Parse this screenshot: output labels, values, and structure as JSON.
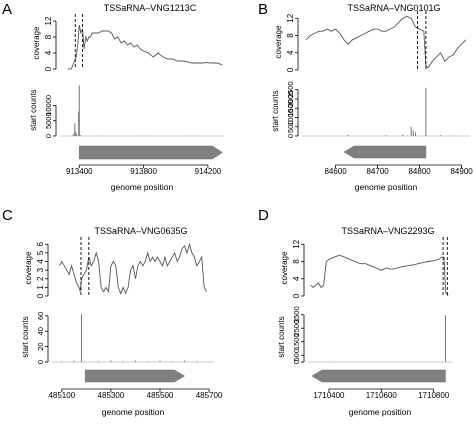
{
  "xlabel": "genome position",
  "chart_data": [
    {
      "panel": "A",
      "title": "TSSaRNA–VNG1213C",
      "type": "line",
      "coverage": {
        "ylabel": "coverage",
        "ylim": [
          0,
          13
        ],
        "yticks": [
          "0",
          "4",
          "8",
          "12"
        ],
        "x": [
          913330,
          913340,
          913350,
          913360,
          913370,
          913380,
          913390,
          913400,
          913410,
          913420,
          913430,
          913440,
          913450,
          913460,
          913470,
          913480,
          913490,
          913500,
          913520,
          913540,
          913560,
          913580,
          913600,
          913620,
          913640,
          913660,
          913680,
          913700,
          913720,
          913740,
          913760,
          913780,
          913800,
          913830,
          913860,
          913890,
          913920,
          913950,
          913980,
          914010,
          914040,
          914070,
          914100,
          914130,
          914160,
          914190,
          914220,
          914250,
          914280,
          914290
        ],
        "y": [
          0,
          0,
          0,
          1,
          2,
          3,
          6,
          11,
          9,
          10,
          5,
          8,
          7,
          8,
          8,
          9,
          9,
          9,
          9,
          9.5,
          9.5,
          9.5,
          9,
          7.5,
          8,
          6.5,
          7,
          6,
          6.5,
          5.5,
          6,
          5,
          4.5,
          4,
          3,
          4,
          3,
          2.5,
          2.5,
          2,
          2,
          1.8,
          1.5,
          1.5,
          1.5,
          1.6,
          1.5,
          1.5,
          1.2,
          1
        ]
      },
      "start_counts": {
        "ylabel": "start counts",
        "ylim": [
          0,
          17000
        ],
        "yticks": [
          "0",
          "5000",
          "10000"
        ],
        "spikes": [
          [
            913362,
            600
          ],
          [
            913372,
            4200
          ],
          [
            913376,
            1500
          ],
          [
            913382,
            800
          ],
          [
            913396,
            8000
          ],
          [
            913400,
            16500
          ],
          [
            913406,
            300
          ],
          [
            913520,
            150
          ],
          [
            913800,
            120
          ],
          [
            914100,
            100
          ]
        ]
      },
      "xticks": [
        913400,
        913800,
        914200
      ],
      "xlim": [
        913280,
        914300
      ],
      "gene": {
        "start": 913400,
        "end": 914290,
        "direction": "right"
      },
      "tss_lines": [
        913375,
        913420
      ]
    },
    {
      "panel": "B",
      "title": "TSSaRNA–VNG0101G",
      "type": "line",
      "coverage": {
        "ylabel": "coverage",
        "ylim": [
          0,
          13
        ],
        "yticks": [
          "0",
          "4",
          "8",
          "12"
        ],
        "x": [
          84530,
          84540,
          84550,
          84560,
          84570,
          84580,
          84590,
          84600,
          84610,
          84620,
          84630,
          84640,
          84650,
          84660,
          84670,
          84680,
          84690,
          84700,
          84710,
          84720,
          84730,
          84740,
          84750,
          84760,
          84770,
          84780,
          84790,
          84800,
          84810,
          84815,
          84820,
          84830,
          84840,
          84850,
          84860,
          84870,
          84880,
          84890,
          84900,
          84910
        ],
        "y": [
          7,
          8,
          8.5,
          9,
          9,
          9.5,
          9,
          9.5,
          8.5,
          7,
          6,
          7,
          7.5,
          8,
          8.5,
          9,
          9.5,
          9.5,
          9,
          9,
          9.5,
          10,
          11,
          12,
          12.5,
          12,
          10,
          9.5,
          9,
          1,
          0.5,
          2,
          3,
          4,
          2,
          3,
          3.5,
          5,
          6,
          7
        ]
      },
      "start_counts": {
        "ylabel": "start counts",
        "ylim": [
          0,
          2700
        ],
        "yticks": [
          "0",
          "500",
          "1000",
          "1500",
          "2000",
          "2500"
        ],
        "spikes": [
          [
            84630,
            60
          ],
          [
            84720,
            40
          ],
          [
            84760,
            80
          ],
          [
            84780,
            500
          ],
          [
            84785,
            300
          ],
          [
            84790,
            200
          ],
          [
            84815,
            2600
          ],
          [
            84850,
            40
          ],
          [
            84880,
            30
          ]
        ]
      },
      "xticks": [
        84600,
        84700,
        84800,
        84900
      ],
      "xlim": [
        84520,
        84920
      ],
      "gene": {
        "start": 84620,
        "end": 84815,
        "direction": "left"
      },
      "tss_lines": [
        84795,
        84815
      ]
    },
    {
      "panel": "C",
      "title": "TSSaRNA–VNG0635G",
      "type": "line",
      "coverage": {
        "ylabel": "coverage",
        "ylim": [
          0,
          6.5
        ],
        "yticks": [
          "0",
          "1",
          "2",
          "3",
          "4",
          "5",
          "6"
        ],
        "x": [
          485090,
          485100,
          485110,
          485120,
          485130,
          485140,
          485150,
          485160,
          485170,
          485175,
          485180,
          485190,
          485200,
          485210,
          485220,
          485230,
          485240,
          485250,
          485260,
          485270,
          485280,
          485290,
          485300,
          485310,
          485320,
          485330,
          485340,
          485350,
          485360,
          485370,
          485380,
          485390,
          485400,
          485410,
          485420,
          485430,
          485440,
          485450,
          485460,
          485470,
          485480,
          485490,
          485500,
          485510,
          485520,
          485530,
          485540,
          485550,
          485560,
          485570,
          485580,
          485590,
          485600,
          485610,
          485620,
          485630,
          485640,
          485650,
          485660,
          485670,
          485680,
          485690
        ],
        "y": [
          3.5,
          4,
          3.5,
          3,
          2.5,
          3.5,
          2.5,
          1.5,
          1,
          0.5,
          2,
          2.5,
          3,
          4.5,
          3.5,
          4,
          5,
          4,
          1,
          0.5,
          1,
          0.5,
          3.5,
          4,
          3.5,
          1,
          0.3,
          1,
          0.3,
          1,
          3,
          3.5,
          2,
          3.5,
          4,
          3.5,
          4,
          5,
          4,
          4.5,
          4,
          4.5,
          4,
          3.5,
          4.5,
          3.5,
          4,
          4.5,
          5,
          4,
          4.5,
          5.5,
          5.8,
          5,
          6,
          5,
          4.5,
          3.5,
          4,
          4.5,
          1,
          0.5
        ]
      },
      "start_counts": {
        "ylabel": "start counts",
        "ylim": [
          0,
          65
        ],
        "yticks": [
          "0",
          "20",
          "40",
          "60"
        ],
        "spikes": [
          [
            485180,
            62
          ],
          [
            485100,
            1
          ],
          [
            485150,
            2
          ],
          [
            485250,
            1
          ],
          [
            485300,
            2
          ],
          [
            485350,
            1
          ],
          [
            485400,
            2
          ],
          [
            485450,
            1
          ],
          [
            485500,
            2
          ],
          [
            485550,
            1
          ],
          [
            485600,
            2
          ],
          [
            485650,
            1
          ]
        ]
      },
      "xticks": [
        485100,
        485300,
        485500,
        485700
      ],
      "xlim": [
        485060,
        485720
      ],
      "gene": {
        "start": 485195,
        "end": 485600,
        "direction": "right"
      },
      "tss_lines": [
        485178,
        485210
      ]
    },
    {
      "panel": "D",
      "title": "TSSaRNA–VNG2293G",
      "type": "line",
      "coverage": {
        "ylabel": "coverage",
        "ylim": [
          0,
          13
        ],
        "yticks": [
          "0",
          "4",
          "8",
          "12"
        ],
        "x": [
          1710330,
          1710340,
          1710350,
          1710360,
          1710370,
          1710380,
          1710390,
          1710400,
          1710420,
          1710440,
          1710460,
          1710480,
          1710500,
          1710520,
          1710540,
          1710560,
          1710580,
          1710600,
          1710620,
          1710640,
          1710660,
          1710680,
          1710700,
          1710720,
          1710740,
          1710760,
          1710780,
          1710800,
          1710820,
          1710830,
          1710840,
          1710845,
          1710850,
          1710855
        ],
        "y": [
          2.5,
          2,
          2.5,
          3,
          2,
          2.5,
          8,
          8.5,
          9,
          9.5,
          9,
          8.5,
          8,
          7.5,
          7.5,
          7,
          6.5,
          6,
          6.5,
          6.2,
          6.5,
          6.8,
          7,
          7.2,
          7.5,
          7.8,
          8,
          8.2,
          8.5,
          9,
          9,
          1,
          0.5,
          0
        ]
      },
      "start_counts": {
        "ylabel": "start counts",
        "ylim": [
          0,
          3700
        ],
        "yticks": [
          "0",
          "500",
          "1500",
          "2500",
          "3500"
        ],
        "spikes": [
          [
            1710845,
            3450
          ],
          [
            1710400,
            20
          ]
        ]
      },
      "xticks": [
        1710400,
        1710600,
        1710800
      ],
      "xlim": [
        1710320,
        1710870
      ],
      "gene": {
        "start": 1710335,
        "end": 1710845,
        "direction": "left"
      },
      "tss_lines": [
        1710836,
        1710852
      ]
    }
  ]
}
